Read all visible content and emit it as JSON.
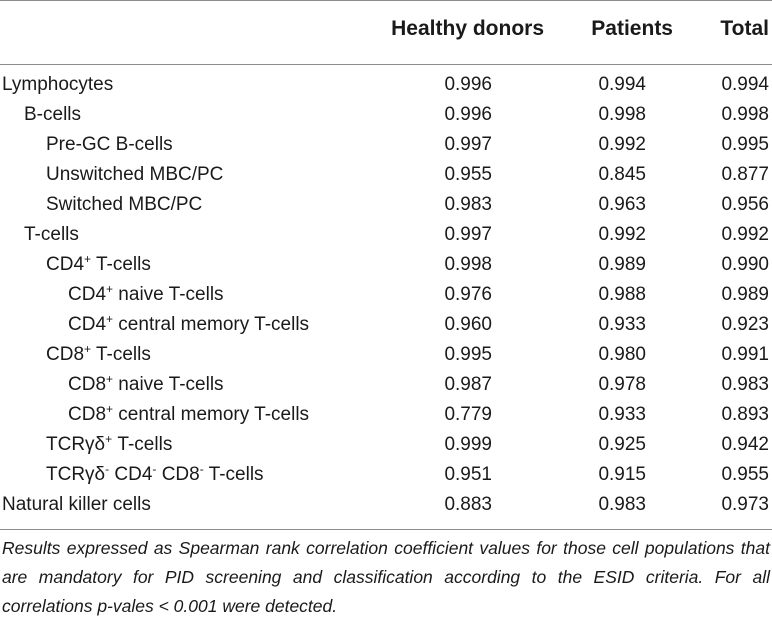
{
  "headers": {
    "label": "",
    "col1": "Healthy donors",
    "col2": "Patients",
    "col3": "Total"
  },
  "rows": [
    {
      "indent": 0,
      "label": "Lymphocytes",
      "parts": [
        "Lymphocytes"
      ],
      "values": [
        "0.996",
        "0.994",
        "0.994"
      ]
    },
    {
      "indent": 1,
      "label": "B-cells",
      "parts": [
        "B-cells"
      ],
      "values": [
        "0.996",
        "0.998",
        "0.998"
      ]
    },
    {
      "indent": 2,
      "label": "Pre-GC B-cells",
      "parts": [
        "Pre-GC B-cells"
      ],
      "values": [
        "0.997",
        "0.992",
        "0.995"
      ]
    },
    {
      "indent": 2,
      "label": "Unswitched MBC/PC",
      "parts": [
        "Unswitched MBC/PC"
      ],
      "values": [
        "0.955",
        "0.845",
        "0.877"
      ]
    },
    {
      "indent": 2,
      "label": "Switched MBC/PC",
      "parts": [
        "Switched MBC/PC"
      ],
      "values": [
        "0.983",
        "0.963",
        "0.956"
      ]
    },
    {
      "indent": 1,
      "label": "T-cells",
      "parts": [
        "T-cells"
      ],
      "values": [
        "0.997",
        "0.992",
        "0.992"
      ]
    },
    {
      "indent": 2,
      "label": "CD4+ T-cells",
      "parts": [
        "CD4",
        "+",
        " T-cells"
      ],
      "values": [
        "0.998",
        "0.989",
        "0.990"
      ]
    },
    {
      "indent": 3,
      "label": "CD4+ naive T-cells",
      "parts": [
        "CD4",
        "+",
        " naive T-cells"
      ],
      "values": [
        "0.976",
        "0.988",
        "0.989"
      ]
    },
    {
      "indent": 3,
      "label": "CD4+ central memory T-cells",
      "parts": [
        "CD4",
        "+",
        " central memory T-cells"
      ],
      "values": [
        "0.960",
        "0.933",
        "0.923"
      ]
    },
    {
      "indent": 2,
      "label": "CD8+ T-cells",
      "parts": [
        "CD8",
        "+",
        " T-cells"
      ],
      "values": [
        "0.995",
        "0.980",
        "0.991"
      ]
    },
    {
      "indent": 3,
      "label": "CD8+ naive T-cells",
      "parts": [
        "CD8",
        "+",
        " naive T-cells"
      ],
      "values": [
        "0.987",
        "0.978",
        "0.983"
      ]
    },
    {
      "indent": 3,
      "label": "CD8+ central memory T-cells",
      "parts": [
        "CD8",
        "+",
        " central memory T-cells"
      ],
      "values": [
        "0.779",
        "0.933",
        "0.893"
      ]
    },
    {
      "indent": 2,
      "label": "TCRγδ+ T-cells",
      "parts": [
        "TCRγδ",
        "+",
        " T-cells"
      ],
      "values": [
        "0.999",
        "0.925",
        "0.942"
      ]
    },
    {
      "indent": 2,
      "label": "TCRγδ- CD4- CD8- T-cells",
      "parts": [
        "TCRγδ",
        "-",
        " CD4",
        "-",
        " CD8",
        "-",
        " T-cells"
      ],
      "values": [
        "0.951",
        "0.915",
        "0.955"
      ]
    },
    {
      "indent": 0,
      "label": "Natural killer cells",
      "parts": [
        "Natural killer cells"
      ],
      "values": [
        "0.883",
        "0.983",
        "0.973"
      ]
    }
  ],
  "footnote": "Results expressed as Spearman rank correlation coefficient values for those cell populations that are mandatory for PID screening and classification according to the ESID criteria. For all correlations p-vales < 0.001 were detected."
}
